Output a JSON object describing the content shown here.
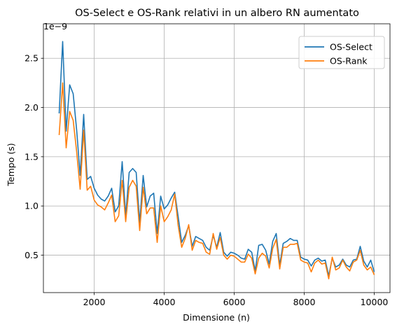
{
  "chart_data": {
    "type": "line",
    "title": "OS-Select e OS-Rank relativi in un albero RN aumentato",
    "xlabel": "Dimensione (n)",
    "ylabel": "Tempo (s)",
    "y_multiplier_label": "1e−9",
    "xlim": [
      550,
      10450
    ],
    "ylim": [
      0.12,
      2.85
    ],
    "x_ticks": [
      2000,
      4000,
      6000,
      8000,
      10000
    ],
    "y_ticks": [
      0.5,
      1.0,
      1.5,
      2.0,
      2.5
    ],
    "x_tick_labels": [
      "2000",
      "4000",
      "6000",
      "8000",
      "10000"
    ],
    "y_tick_labels": [
      "0.5",
      "1.0",
      "1.5",
      "2.0",
      "2.5"
    ],
    "grid": true,
    "legend_position": "top-right",
    "x": [
      1000,
      1100,
      1200,
      1300,
      1400,
      1500,
      1600,
      1700,
      1800,
      1900,
      2000,
      2100,
      2200,
      2300,
      2400,
      2500,
      2600,
      2700,
      2800,
      2900,
      3000,
      3100,
      3200,
      3300,
      3400,
      3500,
      3600,
      3700,
      3800,
      3900,
      4000,
      4100,
      4200,
      4300,
      4400,
      4500,
      4600,
      4700,
      4800,
      4900,
      5000,
      5100,
      5200,
      5300,
      5400,
      5500,
      5600,
      5700,
      5800,
      5900,
      6000,
      6100,
      6200,
      6300,
      6400,
      6500,
      6600,
      6700,
      6800,
      6900,
      7000,
      7100,
      7200,
      7300,
      7400,
      7500,
      7600,
      7700,
      7800,
      7900,
      8000,
      8100,
      8200,
      8300,
      8400,
      8500,
      8600,
      8700,
      8800,
      8900,
      9000,
      9100,
      9200,
      9300,
      9400,
      9500,
      9600,
      9700,
      9800,
      9900,
      10000
    ],
    "series": [
      {
        "name": "OS-Select",
        "color": "#1f77b4",
        "values": [
          1.94,
          2.67,
          1.76,
          2.23,
          2.14,
          1.77,
          1.31,
          1.93,
          1.27,
          1.3,
          1.18,
          1.11,
          1.07,
          1.05,
          1.1,
          1.18,
          0.94,
          1.0,
          1.45,
          0.9,
          1.34,
          1.38,
          1.34,
          0.83,
          1.31,
          0.99,
          1.1,
          1.13,
          0.72,
          1.1,
          0.97,
          1.01,
          1.08,
          1.14,
          0.89,
          0.63,
          0.7,
          0.8,
          0.59,
          0.69,
          0.67,
          0.65,
          0.58,
          0.55,
          0.7,
          0.58,
          0.73,
          0.53,
          0.49,
          0.53,
          0.52,
          0.5,
          0.47,
          0.46,
          0.56,
          0.53,
          0.34,
          0.6,
          0.61,
          0.55,
          0.41,
          0.64,
          0.72,
          0.4,
          0.62,
          0.64,
          0.67,
          0.65,
          0.65,
          0.48,
          0.46,
          0.45,
          0.39,
          0.45,
          0.47,
          0.44,
          0.45,
          0.29,
          0.47,
          0.38,
          0.4,
          0.46,
          0.4,
          0.38,
          0.45,
          0.46,
          0.59,
          0.44,
          0.38,
          0.45,
          0.33
        ]
      },
      {
        "name": "OS-Rank",
        "color": "#ff7f0e",
        "values": [
          1.72,
          2.25,
          1.59,
          1.96,
          1.87,
          1.55,
          1.17,
          1.77,
          1.16,
          1.2,
          1.06,
          1.01,
          0.99,
          0.96,
          1.03,
          1.11,
          0.84,
          0.9,
          1.26,
          0.84,
          1.19,
          1.26,
          1.2,
          0.75,
          1.19,
          0.92,
          0.98,
          0.98,
          0.63,
          1.0,
          0.84,
          0.89,
          0.96,
          1.12,
          0.8,
          0.58,
          0.67,
          0.81,
          0.55,
          0.65,
          0.63,
          0.62,
          0.53,
          0.51,
          0.72,
          0.56,
          0.68,
          0.5,
          0.46,
          0.5,
          0.49,
          0.46,
          0.43,
          0.43,
          0.51,
          0.47,
          0.31,
          0.47,
          0.52,
          0.49,
          0.37,
          0.57,
          0.66,
          0.36,
          0.58,
          0.58,
          0.61,
          0.61,
          0.62,
          0.45,
          0.43,
          0.42,
          0.33,
          0.42,
          0.45,
          0.41,
          0.42,
          0.26,
          0.48,
          0.35,
          0.37,
          0.45,
          0.38,
          0.34,
          0.43,
          0.45,
          0.55,
          0.4,
          0.35,
          0.38,
          0.3
        ]
      }
    ]
  }
}
